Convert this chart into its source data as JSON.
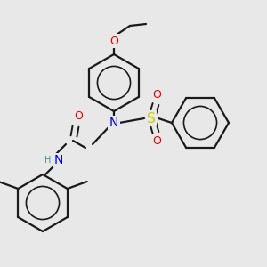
{
  "bg_color": "#e8e8e8",
  "bond_color": "#1a1a1a",
  "atom_colors": {
    "N": "#0000ee",
    "O": "#ee0000",
    "S": "#cccc00",
    "H": "#4a9090",
    "C": "#1a1a1a"
  },
  "figsize": [
    3.0,
    3.0
  ],
  "dpi": 100
}
